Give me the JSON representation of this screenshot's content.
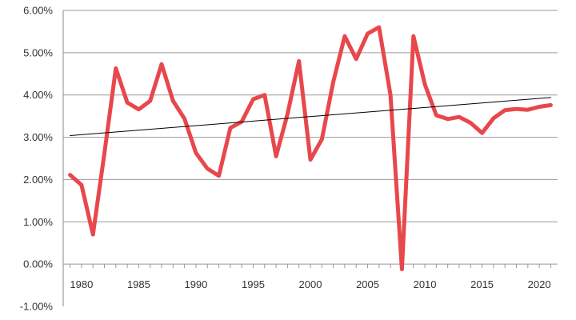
{
  "chart_data": {
    "type": "line",
    "title": "",
    "xlabel": "",
    "ylabel": "",
    "xlim": [
      1978.4,
      2021.6
    ],
    "ylim": [
      -0.01,
      0.06
    ],
    "y_tick_values": [
      -0.01,
      0,
      0.01,
      0.02,
      0.03,
      0.04,
      0.05,
      0.06
    ],
    "y_tick_labels": [
      "-1.00%",
      "0.00%",
      "1.00%",
      "2.00%",
      "3.00%",
      "4.00%",
      "5.00%",
      "6.00%"
    ],
    "x_tick_values": [
      1980,
      1985,
      1990,
      1995,
      2000,
      2005,
      2010,
      2015,
      2020
    ],
    "x_tick_labels": [
      "1980",
      "1985",
      "1990",
      "1995",
      "2000",
      "2005",
      "2010",
      "2015",
      "2020"
    ],
    "grid": "horizontal",
    "legend": "none",
    "series": [
      {
        "color": "#e8474c",
        "x": [
          1979,
          1980,
          1981,
          1982,
          1983,
          1984,
          1985,
          1986,
          1987,
          1988,
          1989,
          1990,
          1991,
          1992,
          1993,
          1994,
          1995,
          1996,
          1997,
          1998,
          1999,
          2000,
          2001,
          2002,
          2003,
          2004,
          2005,
          2006,
          2007,
          2008,
          2009,
          2010,
          2011,
          2012,
          2013,
          2014,
          2015,
          2016,
          2017,
          2018,
          2019,
          2020,
          2021
        ],
        "values": [
          0.0211,
          0.0187,
          0.007,
          0.0262,
          0.0463,
          0.0382,
          0.0366,
          0.0386,
          0.0473,
          0.0386,
          0.0344,
          0.0263,
          0.0226,
          0.0209,
          0.0322,
          0.0337,
          0.039,
          0.04,
          0.0255,
          0.0355,
          0.048,
          0.0247,
          0.0295,
          0.0431,
          0.0539,
          0.0485,
          0.0545,
          0.056,
          0.04,
          -0.0012,
          0.0539,
          0.0425,
          0.0352,
          0.0343,
          0.0348,
          0.0334,
          0.031,
          0.0345,
          0.0364,
          0.0367,
          0.0365,
          0.0372,
          0.0376
        ]
      },
      {
        "color": "#000000",
        "x": [
          1979,
          2021
        ],
        "values": [
          0.0304,
          0.0394
        ]
      }
    ]
  }
}
